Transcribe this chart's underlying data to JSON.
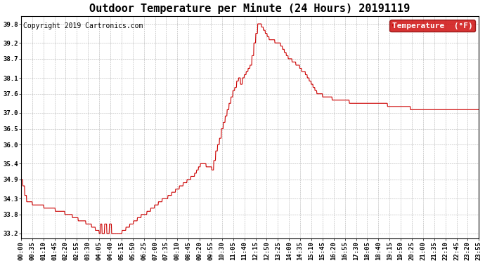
{
  "title": "Outdoor Temperature per Minute (24 Hours) 20191119",
  "copyright": "Copyright 2019 Cartronics.com",
  "legend_label": "Temperature  (°F)",
  "line_color": "#cc0000",
  "legend_bg": "#cc0000",
  "legend_text_color": "#ffffff",
  "background_color": "#ffffff",
  "plot_bg": "#ffffff",
  "grid_color": "#b0b0b0",
  "ylim": [
    33.05,
    40.05
  ],
  "yticks": [
    33.2,
    33.8,
    34.3,
    34.9,
    35.4,
    36.0,
    36.5,
    37.0,
    37.6,
    38.1,
    38.7,
    39.2,
    39.8
  ],
  "xtick_labels": [
    "00:00",
    "00:35",
    "01:10",
    "01:45",
    "02:20",
    "02:55",
    "03:30",
    "04:05",
    "04:40",
    "05:15",
    "05:50",
    "06:25",
    "07:00",
    "07:35",
    "08:10",
    "08:45",
    "09:20",
    "09:55",
    "10:30",
    "11:05",
    "11:40",
    "12:15",
    "12:50",
    "13:25",
    "14:00",
    "14:35",
    "15:10",
    "15:45",
    "16:20",
    "16:55",
    "17:30",
    "18:05",
    "18:40",
    "19:15",
    "19:50",
    "20:25",
    "21:00",
    "21:35",
    "22:10",
    "22:45",
    "23:20",
    "23:55"
  ],
  "title_fontsize": 11,
  "axis_fontsize": 6.5,
  "copyright_fontsize": 7,
  "legend_fontsize": 8
}
